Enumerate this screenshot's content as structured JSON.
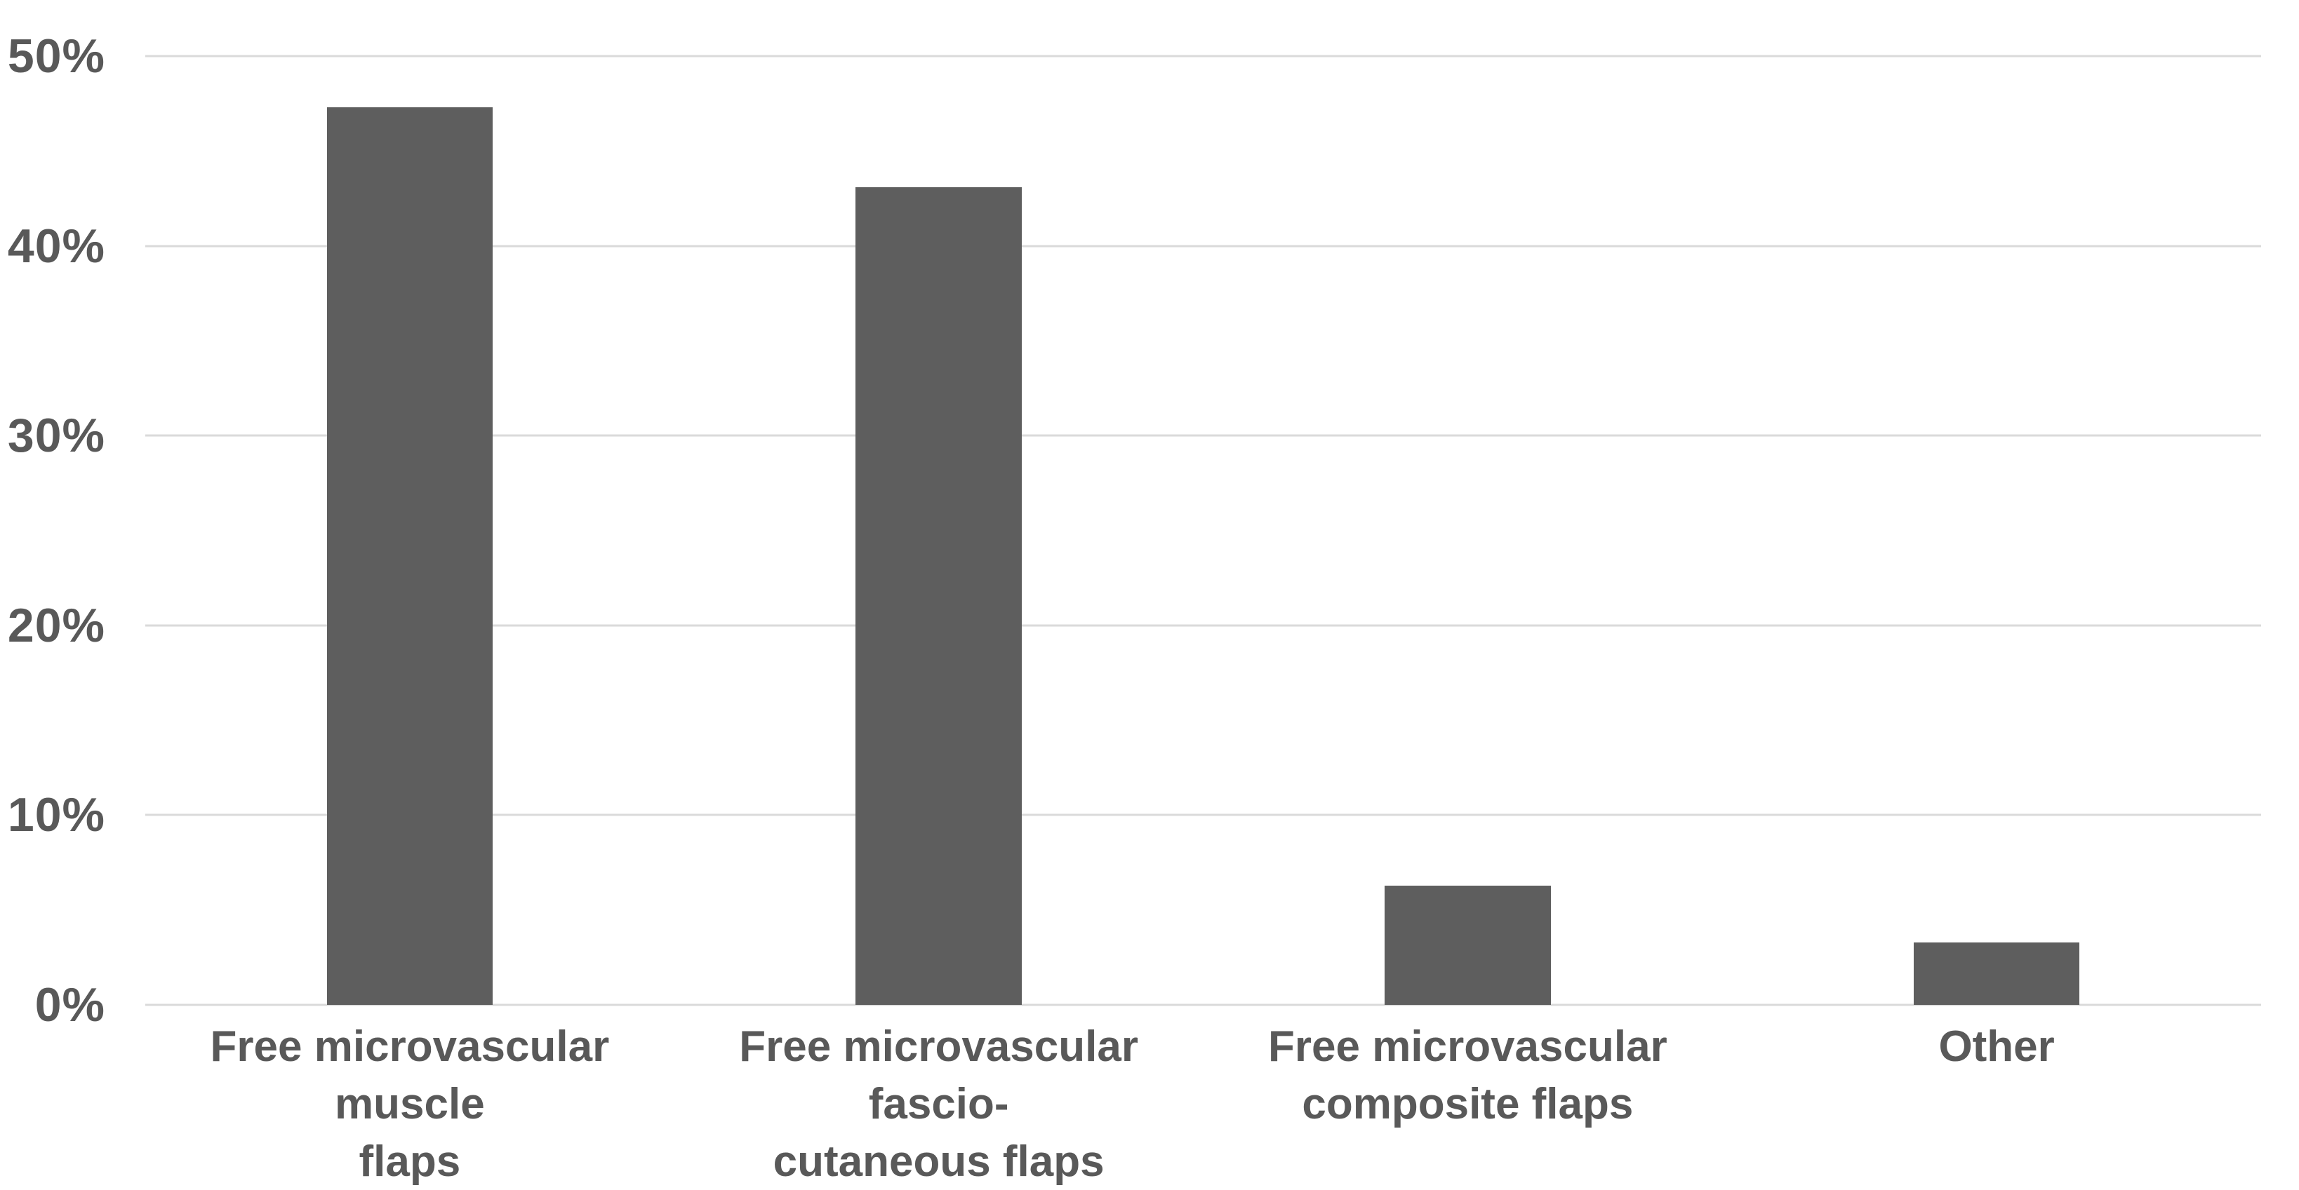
{
  "chart_data": {
    "type": "bar",
    "title": "",
    "xlabel": "",
    "ylabel": "",
    "categories": [
      "Free microvascular muscle flaps",
      "Free microvascular fascio-cutaneous flaps",
      "Free microvascular composite flaps",
      "Other"
    ],
    "category_lines": [
      [
        "Free microvascular muscle",
        "flaps"
      ],
      [
        "Free microvascular fascio-",
        "cutaneous flaps"
      ],
      [
        "Free microvascular",
        "composite flaps"
      ],
      [
        "Other"
      ]
    ],
    "values": [
      47.3,
      43.1,
      6.3,
      3.3
    ],
    "unit": "%",
    "ylim": [
      0,
      50
    ],
    "yticks": [
      0,
      10,
      20,
      30,
      40,
      50
    ],
    "ytick_labels": [
      "0%",
      "10%",
      "20%",
      "30%",
      "40%",
      "50%"
    ],
    "grid": "horizontal-only",
    "legend": "none",
    "colors": {
      "bar": "#5e5e5e",
      "text": "#595959",
      "gridline": "#dadada",
      "background": "#ffffff"
    }
  }
}
